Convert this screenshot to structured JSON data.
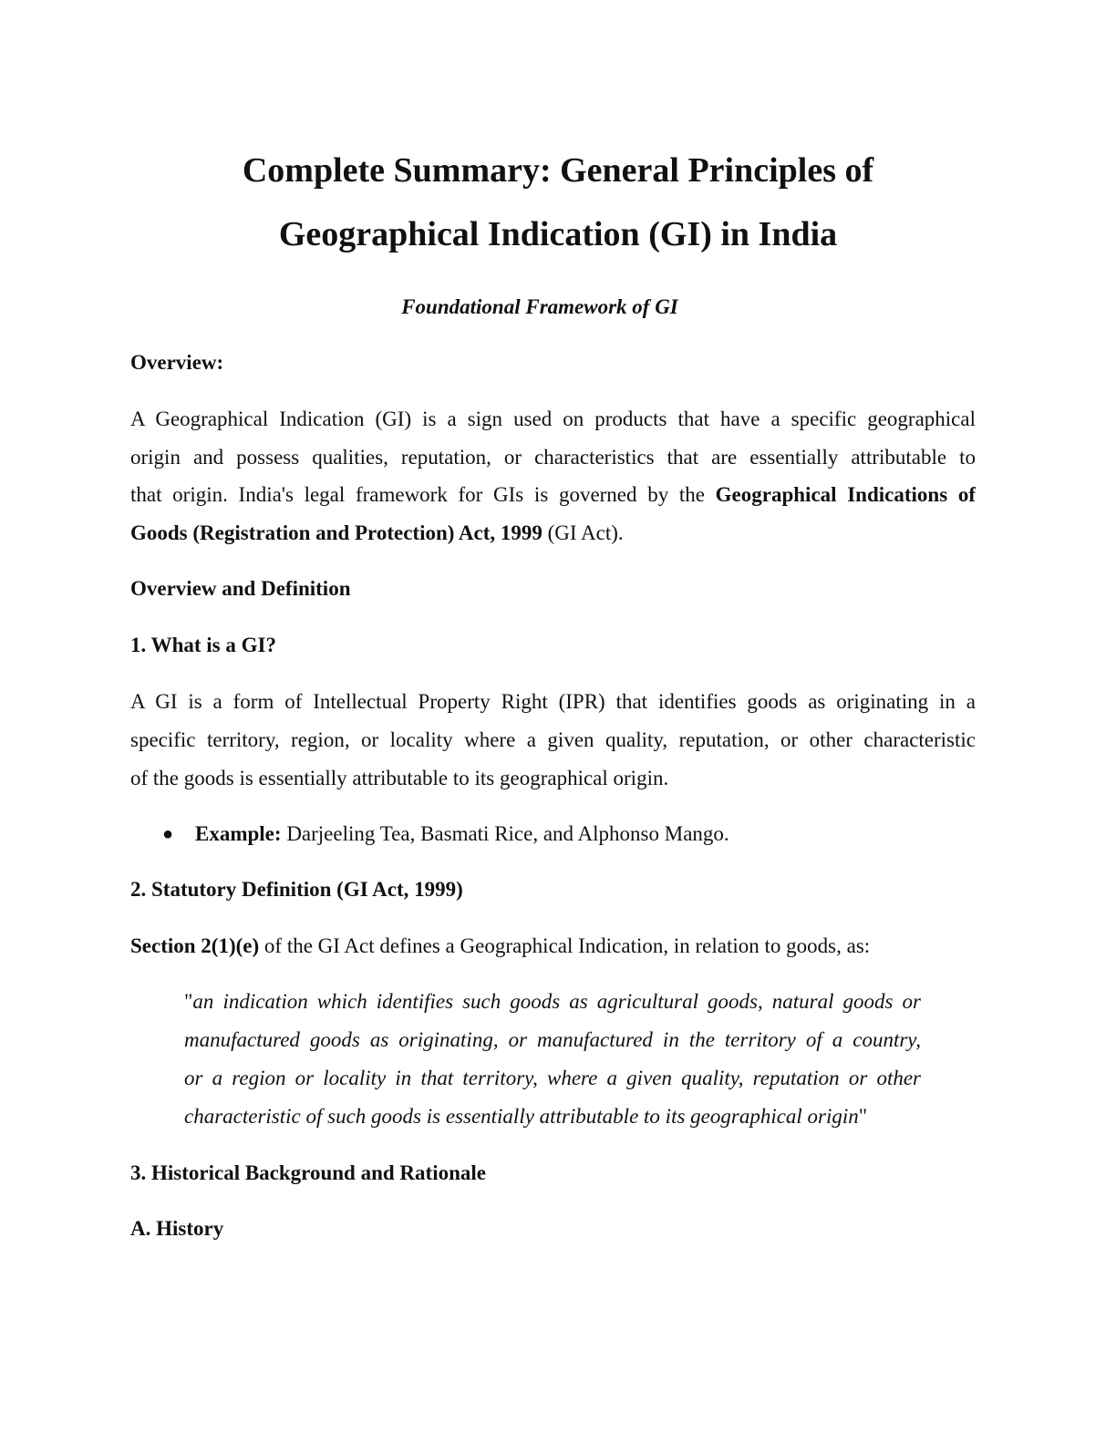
{
  "title": [
    "Complete Summary: General Principles of",
    "Geographical Indication (GI) in India"
  ],
  "subtitle": "Foundational Framework of GI",
  "overview_heading": "Overview:",
  "overview_lines": [
    "A Geographical Indication (GI) is a sign used on products that have a specific geographical",
    "origin and possess qualities, reputation, or characteristics that are essentially attributable to",
    "that origin. India's legal framework for GIs is governed by the ",
    "Geographical Indications of",
    "Goods (Registration and Protection) Act, 1999",
    " (GI Act)."
  ],
  "section_heading": "Overview and Definition",
  "h1": "1. What is a GI?",
  "gi_lines": [
    "A GI is a form of Intellectual Property Right (IPR) that identifies goods as originating in a",
    "specific territory, region, or locality where a given quality, reputation, or other characteristic",
    "of the goods is essentially attributable to its geographical origin."
  ],
  "bullet": {
    "symbol": "●",
    "label": "Example:",
    "text": " Darjeeling Tea, Basmati Rice, and Alphonso Mango."
  },
  "h2": "2. Statutory Definition (GI Act, 1999)",
  "section_ref": {
    "bold": "Section 2(1)(e)",
    "text": " of the GI Act defines a Geographical Indication, in relation to goods, as:"
  },
  "quote": {
    "open": "\"",
    "lines": [
      "an indication which identifies such goods as agricultural goods, natural goods or",
      "manufactured goods as originating, or manufactured in the territory of a country,",
      "or a region or locality in that territory, where a given quality, reputation or other",
      "characteristic of such goods is essentially attributable to its geographical origin"
    ],
    "close": "\""
  },
  "h3": "3. Historical Background and Rationale",
  "h3a": "A. History"
}
